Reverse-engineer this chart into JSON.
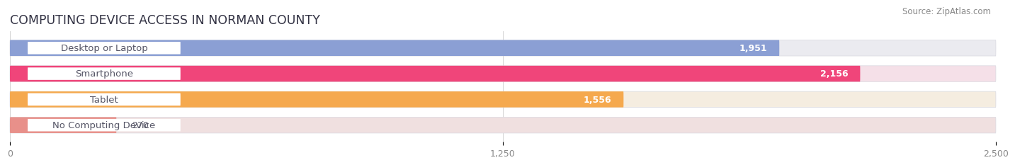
{
  "title": "COMPUTING DEVICE ACCESS IN NORMAN COUNTY",
  "source": "Source: ZipAtlas.com",
  "categories": [
    "Desktop or Laptop",
    "Smartphone",
    "Tablet",
    "No Computing Device"
  ],
  "values": [
    1951,
    2156,
    1556,
    270
  ],
  "bar_colors": [
    "#8b9fd4",
    "#f0457a",
    "#f5a94e",
    "#e8908a"
  ],
  "bar_bg_colors": [
    "#ebebf0",
    "#f5e0e8",
    "#f5ede0",
    "#f0e0e0"
  ],
  "value_labels": [
    "1,951",
    "2,156",
    "1,556",
    "270"
  ],
  "label_text_color": "#555566",
  "xlim": [
    0,
    2500
  ],
  "xticks": [
    0,
    1250,
    2500
  ],
  "xtick_labels": [
    "0",
    "1,250",
    "2,500"
  ],
  "background_color": "#ffffff",
  "bar_height": 0.62,
  "title_fontsize": 12.5,
  "label_fontsize": 9.5,
  "value_fontsize": 9,
  "source_fontsize": 8.5,
  "tick_fontsize": 9
}
